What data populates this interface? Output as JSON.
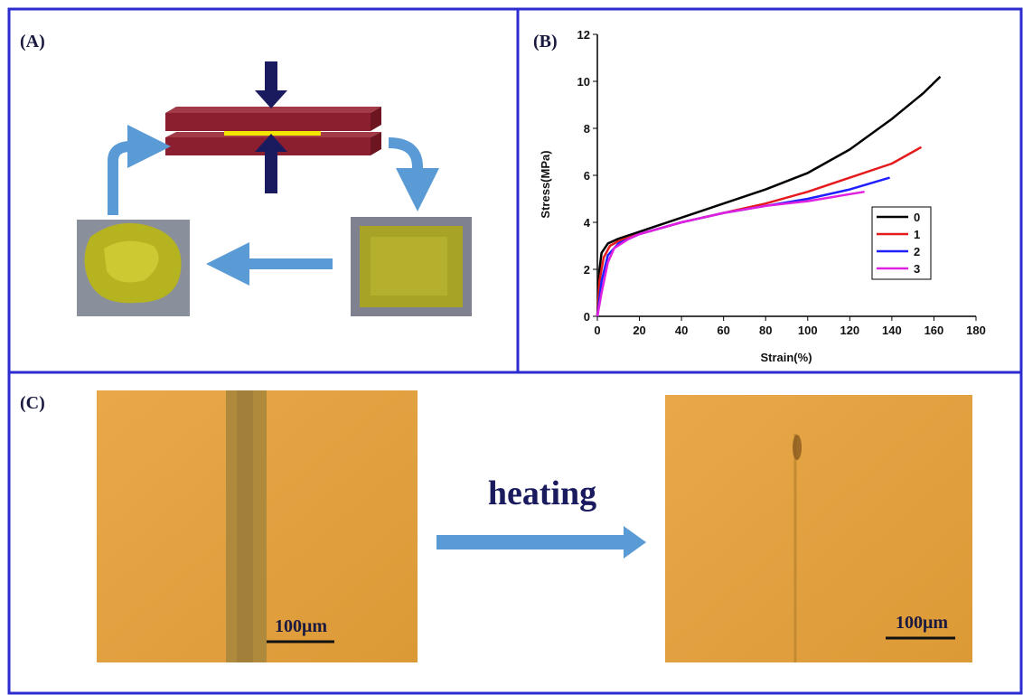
{
  "panel_a": {
    "label": "(A)"
  },
  "chart_data": {
    "type": "line",
    "panel_label": "(B)",
    "x_label": "Strain(%)",
    "y_label": "Stress(MPa)",
    "xlim": [
      0,
      180
    ],
    "xticks": [
      0,
      20,
      40,
      60,
      80,
      100,
      120,
      140,
      160,
      180
    ],
    "ylim": [
      0,
      12
    ],
    "yticks": [
      0,
      2,
      4,
      6,
      8,
      10,
      12
    ],
    "grid": false,
    "legend_position": "right",
    "series": [
      {
        "name": "0",
        "color": "#000000",
        "x": [
          0,
          1,
          2,
          5,
          10,
          20,
          40,
          60,
          80,
          100,
          120,
          140,
          155,
          163
        ],
        "values": [
          0,
          2,
          2.7,
          3.1,
          3.3,
          3.6,
          4.2,
          4.8,
          5.4,
          6.1,
          7.1,
          8.4,
          9.5,
          10.2
        ]
      },
      {
        "name": "1",
        "color": "#e41a1c",
        "x": [
          0,
          1,
          3,
          6,
          10,
          20,
          40,
          60,
          80,
          100,
          120,
          140,
          154
        ],
        "values": [
          0,
          1.5,
          2.5,
          3,
          3.2,
          3.5,
          4,
          4.4,
          4.8,
          5.3,
          5.9,
          6.5,
          7.2
        ]
      },
      {
        "name": "2",
        "color": "#1f1fff",
        "x": [
          0,
          2,
          5,
          10,
          20,
          40,
          60,
          80,
          100,
          120,
          139
        ],
        "values": [
          0,
          1.5,
          2.6,
          3.1,
          3.5,
          4,
          4.4,
          4.7,
          5,
          5.4,
          5.9
        ]
      },
      {
        "name": "3",
        "color": "#e020e0",
        "x": [
          0,
          2,
          5,
          8,
          15,
          20,
          40,
          60,
          80,
          100,
          120,
          127
        ],
        "values": [
          0,
          1,
          2.3,
          2.9,
          3.3,
          3.5,
          4,
          4.4,
          4.7,
          4.9,
          5.2,
          5.3
        ]
      }
    ]
  },
  "panel_c": {
    "label": "(C)",
    "arrow_text": "heating",
    "scale_bars": [
      "100μm",
      "100μm"
    ]
  }
}
